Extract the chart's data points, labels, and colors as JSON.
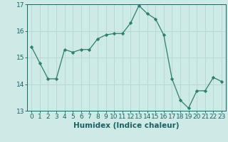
{
  "x": [
    0,
    1,
    2,
    3,
    4,
    5,
    6,
    7,
    8,
    9,
    10,
    11,
    12,
    13,
    14,
    15,
    16,
    17,
    18,
    19,
    20,
    21,
    22,
    23
  ],
  "y": [
    15.4,
    14.8,
    14.2,
    14.2,
    15.3,
    15.2,
    15.3,
    15.3,
    15.7,
    15.85,
    15.9,
    15.9,
    16.3,
    16.95,
    16.65,
    16.45,
    15.85,
    14.2,
    13.4,
    13.1,
    13.75,
    13.75,
    14.25,
    14.1
  ],
  "line_color": "#2e7d6e",
  "marker": "D",
  "marker_size": 2.2,
  "bg_color": "#ceeae6",
  "grid_color": "#b8d8d4",
  "xlabel": "Humidex (Indice chaleur)",
  "ylim": [
    13,
    17
  ],
  "xlim": [
    -0.5,
    23.5
  ],
  "yticks": [
    13,
    14,
    15,
    16,
    17
  ],
  "xticks": [
    0,
    1,
    2,
    3,
    4,
    5,
    6,
    7,
    8,
    9,
    10,
    11,
    12,
    13,
    14,
    15,
    16,
    17,
    18,
    19,
    20,
    21,
    22,
    23
  ],
  "tick_color": "#1e6060",
  "label_fontsize": 7.5,
  "tick_fontsize": 6.5
}
